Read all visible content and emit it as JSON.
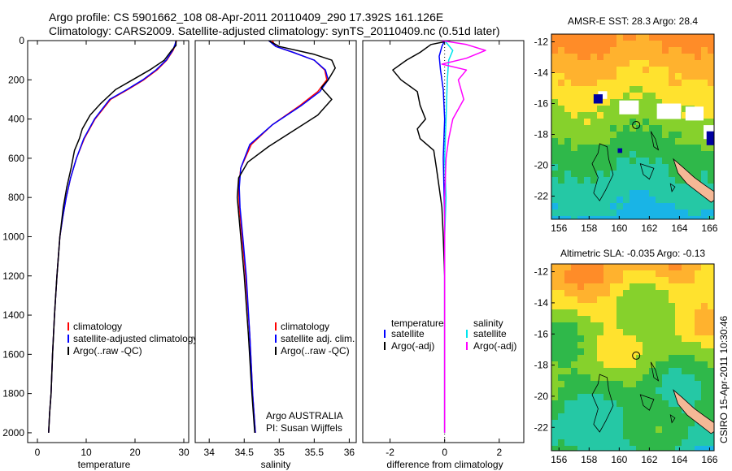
{
  "header": {
    "line1": "Argo profile: CS 5901662_108 08-Apr-2011 20110409_290 17.392S 161.126E",
    "line2": "Climatology: CARS2009. Satellite-adjusted climatology: synTS_20110409.nc (0.51d later)"
  },
  "side_label": "CSIRO 15-Apr-2011 10:30:46",
  "colors": {
    "climatology": "#ff0000",
    "satellite": "#0000ff",
    "argo": "#000000",
    "temp_sat": "#0000ff",
    "sal_sat": "#00e5ee",
    "sal_argo": "#ff00ff",
    "land": "#f4b896"
  },
  "chart_data": [
    {
      "type": "line",
      "id": "temperature",
      "xlabel": "temperature",
      "ylabel": "",
      "xlim": [
        -2,
        31
      ],
      "ylim": [
        2050,
        0
      ],
      "xticks": [
        0,
        10,
        20,
        30
      ],
      "yticks": [
        0,
        200,
        400,
        600,
        800,
        1000,
        1200,
        1400,
        1600,
        1800,
        2000
      ],
      "legend": [
        "climatology",
        "satellite-adjusted climatology",
        "Argo(..raw -QC)"
      ],
      "series": [
        {
          "name": "climatology",
          "color": "#ff0000",
          "x": [
            28.5,
            28.3,
            27.8,
            26.5,
            24.5,
            21.8,
            18.5,
            15.0,
            11.8,
            9.6,
            8.0,
            6.8,
            5.9,
            5.2,
            4.6,
            4.0,
            3.5,
            3.1,
            2.8,
            2.5,
            2.3
          ],
          "y": [
            0,
            20,
            50,
            100,
            150,
            200,
            250,
            300,
            400,
            500,
            600,
            700,
            800,
            900,
            1000,
            1200,
            1400,
            1600,
            1800,
            1900,
            2000
          ]
        },
        {
          "name": "satellite-adjusted climatology",
          "color": "#0000ff",
          "x": [
            28.4,
            28.2,
            27.7,
            26.4,
            24.3,
            21.6,
            18.3,
            14.8,
            11.7,
            9.5,
            8.0,
            6.8,
            5.9,
            5.2,
            4.6,
            4.0,
            3.5,
            3.1,
            2.8,
            2.5,
            2.3
          ],
          "y": [
            0,
            20,
            50,
            100,
            150,
            200,
            250,
            300,
            400,
            500,
            600,
            700,
            800,
            900,
            1000,
            1200,
            1400,
            1600,
            1800,
            1900,
            2000
          ]
        },
        {
          "name": "Argo(..raw -QC)",
          "color": "#000000",
          "x": [
            28.4,
            28.4,
            27.5,
            26.0,
            23.0,
            19.5,
            16.0,
            13.0,
            10.8,
            9.2,
            8.6,
            7.6,
            6.9,
            6.0,
            5.3,
            4.6,
            4.0,
            3.5,
            3.1,
            2.8,
            2.5,
            2.3
          ],
          "y": [
            0,
            25,
            50,
            100,
            150,
            200,
            250,
            320,
            380,
            450,
            500,
            560,
            650,
            750,
            850,
            1000,
            1200,
            1400,
            1600,
            1800,
            1900,
            2000
          ]
        }
      ]
    },
    {
      "type": "line",
      "id": "salinity",
      "xlabel": "salinity",
      "ylabel": "",
      "xlim": [
        33.8,
        36.1
      ],
      "ylim": [
        2050,
        0
      ],
      "xticks": [
        34,
        34.5,
        35,
        35.5,
        36
      ],
      "yticks": [],
      "legend": [
        "climatology",
        "satellite adj. clim.",
        "Argo(..raw -QC)"
      ],
      "annotation": [
        "Argo AUSTRALIA",
        "PI: Susan Wijffels"
      ],
      "series": [
        {
          "name": "climatology",
          "color": "#ff0000",
          "x": [
            34.9,
            34.95,
            35.2,
            35.5,
            35.65,
            35.68,
            35.55,
            35.3,
            34.9,
            34.6,
            34.45,
            34.42,
            34.43,
            34.47,
            34.52,
            34.58,
            34.62,
            34.66
          ],
          "y": [
            0,
            30,
            60,
            100,
            150,
            200,
            260,
            330,
            430,
            530,
            650,
            750,
            850,
            1000,
            1200,
            1500,
            1800,
            2000
          ]
        },
        {
          "name": "satellite adj. clim.",
          "color": "#0000ff",
          "x": [
            34.85,
            34.95,
            35.2,
            35.5,
            35.66,
            35.7,
            35.58,
            35.32,
            34.9,
            34.58,
            34.45,
            34.43,
            34.44,
            34.48,
            34.53,
            34.58,
            34.62,
            34.66
          ],
          "y": [
            0,
            30,
            60,
            100,
            150,
            200,
            260,
            330,
            430,
            530,
            650,
            750,
            850,
            1000,
            1200,
            1500,
            1800,
            2000
          ]
        },
        {
          "name": "Argo(..raw -QC)",
          "color": "#000000",
          "x": [
            34.85,
            35.0,
            35.5,
            35.75,
            35.8,
            35.7,
            35.6,
            35.75,
            35.55,
            35.2,
            34.85,
            34.55,
            34.42,
            34.4,
            34.45,
            34.5,
            34.56,
            34.61,
            34.65
          ],
          "y": [
            0,
            30,
            70,
            100,
            140,
            200,
            240,
            300,
            380,
            460,
            540,
            620,
            700,
            800,
            1000,
            1200,
            1500,
            1800,
            2000
          ]
        }
      ]
    },
    {
      "type": "line",
      "id": "difference",
      "xlabel": "difference from climatology",
      "ylabel": "",
      "xlim": [
        -3.0,
        2.9
      ],
      "ylim": [
        2050,
        0
      ],
      "xticks": [
        -2,
        0,
        2
      ],
      "yticks": [],
      "legend_temperature": {
        "title": "temperature",
        "items": [
          "satellite",
          "Argo(-adj)"
        ]
      },
      "legend_salinity": {
        "title": "salinity",
        "items": [
          "satellite",
          "Argo(-adj)"
        ]
      },
      "series": [
        {
          "name": "temperature satellite",
          "group": "temperature",
          "color": "#0000ff",
          "x": [
            0.0,
            -0.1,
            -0.2,
            -0.15,
            -0.05,
            0.0,
            -0.05,
            0.0,
            0.0,
            0.0,
            0.0
          ],
          "y": [
            0,
            30,
            80,
            150,
            250,
            400,
            600,
            900,
            1300,
            1700,
            2000
          ]
        },
        {
          "name": "temperature Argo(-adj)",
          "group": "temperature",
          "color": "#000000",
          "x": [
            0.2,
            -0.5,
            -0.9,
            -1.4,
            -1.9,
            -1.6,
            -1.0,
            -0.9,
            -0.7,
            -1.0,
            -0.9,
            -0.4,
            -0.3,
            -0.2,
            -0.1,
            -0.05,
            0.0,
            0.0,
            0.0,
            0.0
          ],
          "y": [
            0,
            20,
            60,
            100,
            150,
            200,
            260,
            330,
            400,
            450,
            500,
            560,
            650,
            750,
            850,
            1000,
            1200,
            1500,
            1800,
            2000
          ]
        },
        {
          "name": "salinity satellite",
          "group": "salinity",
          "color": "#00e5ee",
          "x": [
            0.0,
            0.3,
            0.15,
            0.1,
            0.05,
            0.0,
            0.05,
            0.0,
            0.0,
            0.0,
            0.0
          ],
          "y": [
            0,
            50,
            100,
            200,
            400,
            600,
            800,
            1000,
            1400,
            1800,
            2000
          ]
        },
        {
          "name": "salinity Argo(-adj)",
          "group": "salinity",
          "color": "#ff00ff",
          "x": [
            -0.1,
            0.8,
            1.5,
            0.8,
            -0.1,
            0.8,
            0.5,
            0.7,
            0.3,
            0.15,
            0.05,
            0.0,
            0.0,
            0.0
          ],
          "y": [
            0,
            20,
            50,
            90,
            120,
            150,
            200,
            300,
            400,
            500,
            600,
            800,
            1200,
            2000
          ]
        }
      ]
    },
    {
      "type": "heatmap",
      "id": "sst_map",
      "title": "AMSR-E SST: 28.3 Argo: 28.4",
      "xlim": [
        155.5,
        166.3
      ],
      "ylim": [
        -23.5,
        -11.5
      ],
      "xticks": [
        156,
        158,
        160,
        162,
        164,
        166
      ],
      "yticks": [
        -12,
        -14,
        -16,
        -18,
        -20,
        -22
      ],
      "profile_location": {
        "lon": 161.126,
        "lat": -17.392
      }
    },
    {
      "type": "heatmap",
      "id": "sla_map",
      "title": "Altimetric SLA: -0.035 Argo: -0.13",
      "xlim": [
        155.5,
        166.3
      ],
      "ylim": [
        -23.5,
        -11.5
      ],
      "xticks": [
        156,
        158,
        160,
        162,
        164,
        166
      ],
      "yticks": [
        -12,
        -14,
        -16,
        -18,
        -20,
        -22
      ],
      "profile_location": {
        "lon": 161.126,
        "lat": -17.392
      }
    }
  ]
}
